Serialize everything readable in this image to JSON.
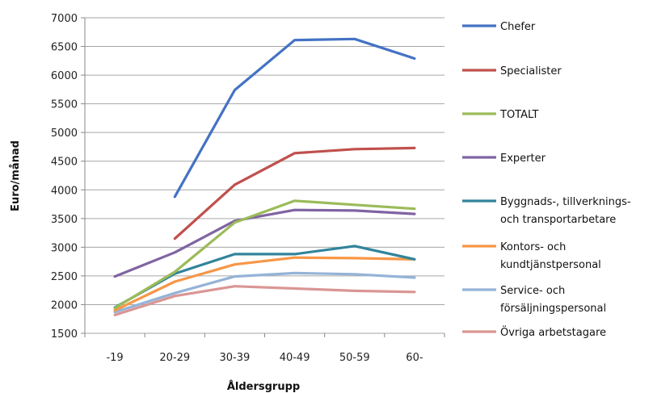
{
  "chart_data": {
    "type": "line",
    "title": "",
    "xlabel": "Åldersgrupp",
    "ylabel": "Euro/månad",
    "ylim": [
      1500,
      7000
    ],
    "yticks": [
      1500,
      2000,
      2500,
      3000,
      3500,
      4000,
      4500,
      5000,
      5500,
      6000,
      6500,
      7000
    ],
    "categories": [
      "-19",
      "20-29",
      "30-39",
      "40-49",
      "50-59",
      "60-"
    ],
    "grid": true,
    "legend_position": "right",
    "series": [
      {
        "name": "Chefer",
        "color": "#4472C4",
        "values": [
          null,
          3880,
          5740,
          6610,
          6630,
          6290
        ]
      },
      {
        "name": "Specialister",
        "color": "#C0504D",
        "values": [
          null,
          3150,
          4090,
          4640,
          4710,
          4730
        ]
      },
      {
        "name": "TOTALT",
        "color": "#9BBB59",
        "values": [
          1940,
          2570,
          3430,
          3810,
          3740,
          3670
        ]
      },
      {
        "name": "Experter",
        "color": "#8064A2",
        "values": [
          2490,
          2910,
          3460,
          3650,
          3640,
          3580
        ]
      },
      {
        "name": "Byggnads-, tillverknings- och transportarbetare",
        "lines": [
          "Byggnads-, tillverknings-",
          "och transportarbetare"
        ],
        "color": "#31849B",
        "values": [
          1950,
          2540,
          2880,
          2880,
          3020,
          2790
        ]
      },
      {
        "name": "Kontors- och kundtjänstpersonal",
        "lines": [
          "Kontors- och",
          "kundtjänstpersonal"
        ],
        "color": "#F79646",
        "values": [
          1900,
          2400,
          2700,
          2820,
          2810,
          2790
        ]
      },
      {
        "name": "Service- och försäljningspersonal",
        "lines": [
          "Service- och",
          "försäljningspersonal"
        ],
        "color": "#95B3D7",
        "values": [
          1870,
          2200,
          2490,
          2550,
          2530,
          2470
        ]
      },
      {
        "name": "Övriga arbetstagare",
        "color": "#D99694",
        "values": [
          1820,
          2150,
          2320,
          2280,
          2240,
          2220
        ]
      }
    ]
  }
}
